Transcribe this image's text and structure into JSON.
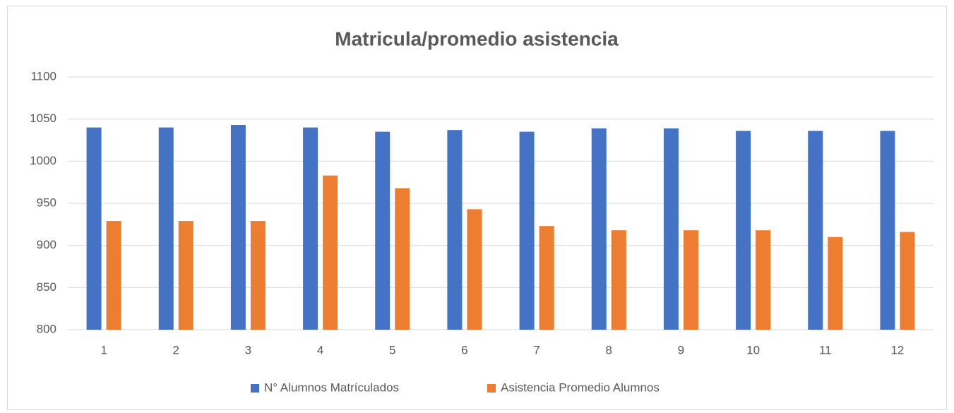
{
  "chart_data": {
    "type": "bar",
    "title": "Matricula/promedio asistencia",
    "categories": [
      "1",
      "2",
      "3",
      "4",
      "5",
      "6",
      "7",
      "8",
      "9",
      "10",
      "11",
      "12"
    ],
    "series": [
      {
        "name": "N° Alumnos Matrículados",
        "color": "#4472c4",
        "values": [
          1040,
          1040,
          1043,
          1040,
          1035,
          1037,
          1035,
          1039,
          1039,
          1036,
          1036,
          1036
        ]
      },
      {
        "name": "Asistencia Promedio Alumnos",
        "color": "#ed7d31",
        "values": [
          929,
          929,
          929,
          983,
          968,
          943,
          923,
          918,
          918,
          918,
          910,
          916
        ]
      }
    ],
    "ylim": [
      800,
      1100
    ],
    "yticks": [
      800,
      850,
      900,
      950,
      1000,
      1050,
      1100
    ],
    "grid": true,
    "legend": "bottom"
  }
}
